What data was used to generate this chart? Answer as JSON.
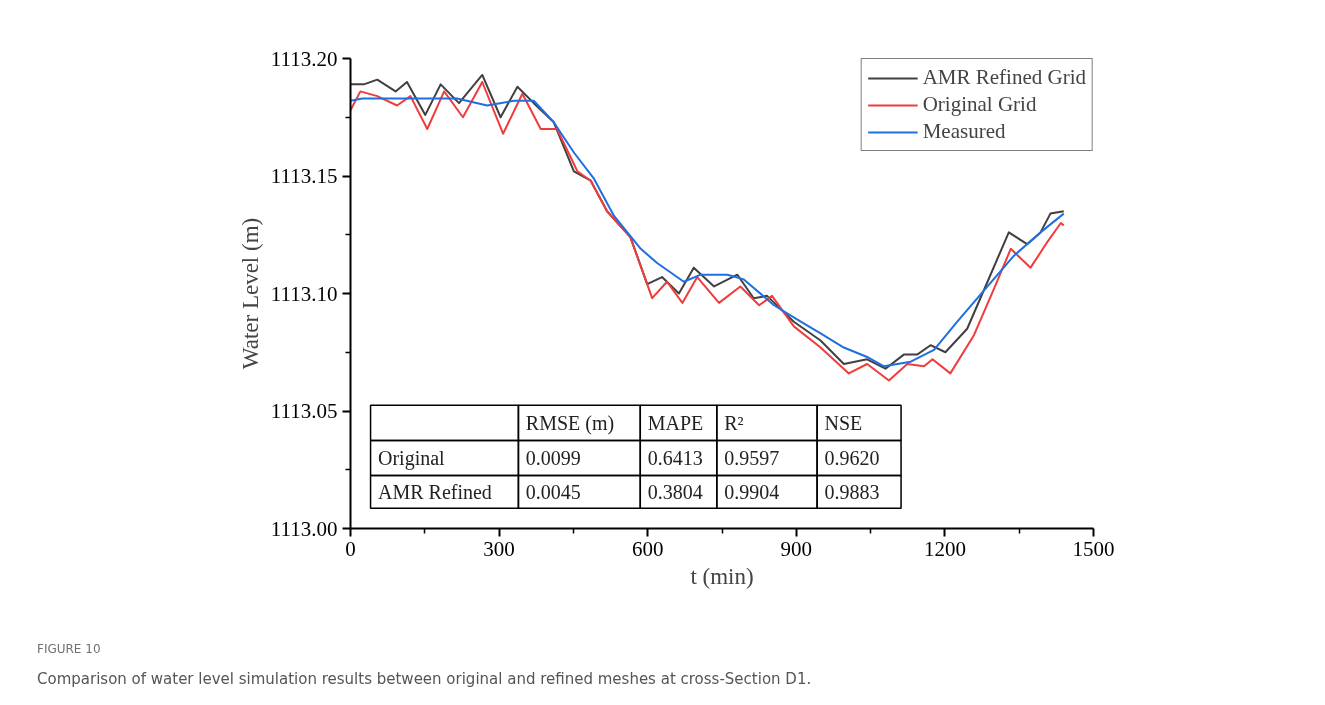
{
  "chart_data": {
    "type": "line",
    "xlabel": "t (min)",
    "ylabel": "Water Level (m)",
    "xlim": [
      0,
      1500
    ],
    "xticks": [
      0,
      300,
      600,
      900,
      1200,
      1500
    ],
    "ylim": [
      1113.0,
      1113.2
    ],
    "yticks": [
      {
        "value": 1113.0,
        "label": "1113.00"
      },
      {
        "value": 1113.05,
        "label": "1113.05"
      },
      {
        "value": 1113.1,
        "label": "1113.10"
      },
      {
        "value": 1113.15,
        "label": "1113.15"
      },
      {
        "value": 1113.2,
        "label": "1113.20"
      }
    ],
    "grid": false,
    "legend": "top right",
    "line_style": "solid",
    "marker": "none",
    "series": [
      {
        "name": "AMR Refined Grid",
        "color": "#404040",
        "x": [
          0,
          27,
          54,
          91,
          114,
          151,
          182,
          219,
          266,
          303,
          337,
          370,
          410,
          451,
          485,
          518,
          565,
          599,
          629,
          663,
          693,
          734,
          781,
          814,
          841,
          895,
          949,
          996,
          1043,
          1080,
          1117,
          1144,
          1171,
          1201,
          1245,
          1286,
          1329,
          1366,
          1393,
          1413,
          1440
        ],
        "values": [
          1113.189,
          1113.189,
          1113.191,
          1113.186,
          1113.19,
          1113.176,
          1113.189,
          1113.181,
          1113.193,
          1113.175,
          1113.188,
          1113.181,
          1113.173,
          1113.152,
          1113.148,
          1113.135,
          1113.124,
          1113.104,
          1113.107,
          1113.1,
          1113.111,
          1113.103,
          1113.108,
          1113.098,
          1113.099,
          1113.088,
          1113.08,
          1113.07,
          1113.072,
          1113.068,
          1113.074,
          1113.074,
          1113.078,
          1113.075,
          1113.085,
          1113.105,
          1113.126,
          1113.121,
          1113.126,
          1113.134,
          1113.135
        ]
      },
      {
        "name": "Original Grid",
        "color": "#f03c3c",
        "x": [
          0,
          20,
          54,
          94,
          121,
          155,
          189,
          227,
          266,
          308,
          347,
          384,
          417,
          458,
          485,
          518,
          565,
          609,
          639,
          670,
          700,
          744,
          787,
          825,
          851,
          895,
          949,
          1006,
          1043,
          1087,
          1124,
          1158,
          1175,
          1211,
          1258,
          1299,
          1333,
          1373,
          1407,
          1434,
          1440
        ],
        "values": [
          1113.178,
          1113.186,
          1113.184,
          1113.18,
          1113.184,
          1113.17,
          1113.186,
          1113.175,
          1113.19,
          1113.168,
          1113.185,
          1113.17,
          1113.17,
          1113.152,
          1113.148,
          1113.135,
          1113.124,
          1113.098,
          1113.105,
          1113.096,
          1113.107,
          1113.096,
          1113.103,
          1113.095,
          1113.099,
          1113.086,
          1113.077,
          1113.066,
          1113.07,
          1113.063,
          1113.07,
          1113.069,
          1113.072,
          1113.066,
          1113.082,
          1113.102,
          1113.119,
          1113.111,
          1113.122,
          1113.13,
          1113.129
        ]
      },
      {
        "name": "Measured",
        "color": "#1f6fe0",
        "x": [
          0,
          24,
          81,
          148,
          215,
          276,
          330,
          370,
          410,
          451,
          491,
          532,
          586,
          619,
          673,
          707,
          761,
          794,
          855,
          909,
          949,
          996,
          1043,
          1077,
          1131,
          1178,
          1225,
          1286,
          1339,
          1393,
          1440
        ],
        "values": [
          1113.182,
          1113.183,
          1113.183,
          1113.183,
          1113.183,
          1113.18,
          1113.182,
          1113.182,
          1113.173,
          1113.16,
          1113.149,
          1113.133,
          1113.119,
          1113.113,
          1113.105,
          1113.108,
          1113.108,
          1113.106,
          1113.095,
          1113.088,
          1113.083,
          1113.077,
          1113.073,
          1113.069,
          1113.071,
          1113.076,
          1113.088,
          1113.103,
          1113.116,
          1113.126,
          1113.134
        ]
      }
    ],
    "annotations": [
      "RMSE (m)",
      "MAPE",
      "R²",
      "NSE",
      "Original",
      "0.0099",
      "0.6413",
      "0.9597",
      "0.9620",
      "AMR Refined",
      "0.0045",
      "0.3804",
      "0.9904",
      "0.9883",
      "FIGURE 10",
      "Comparison of water level simulation results between original and refined meshes at cross-Section D1."
    ]
  }
}
